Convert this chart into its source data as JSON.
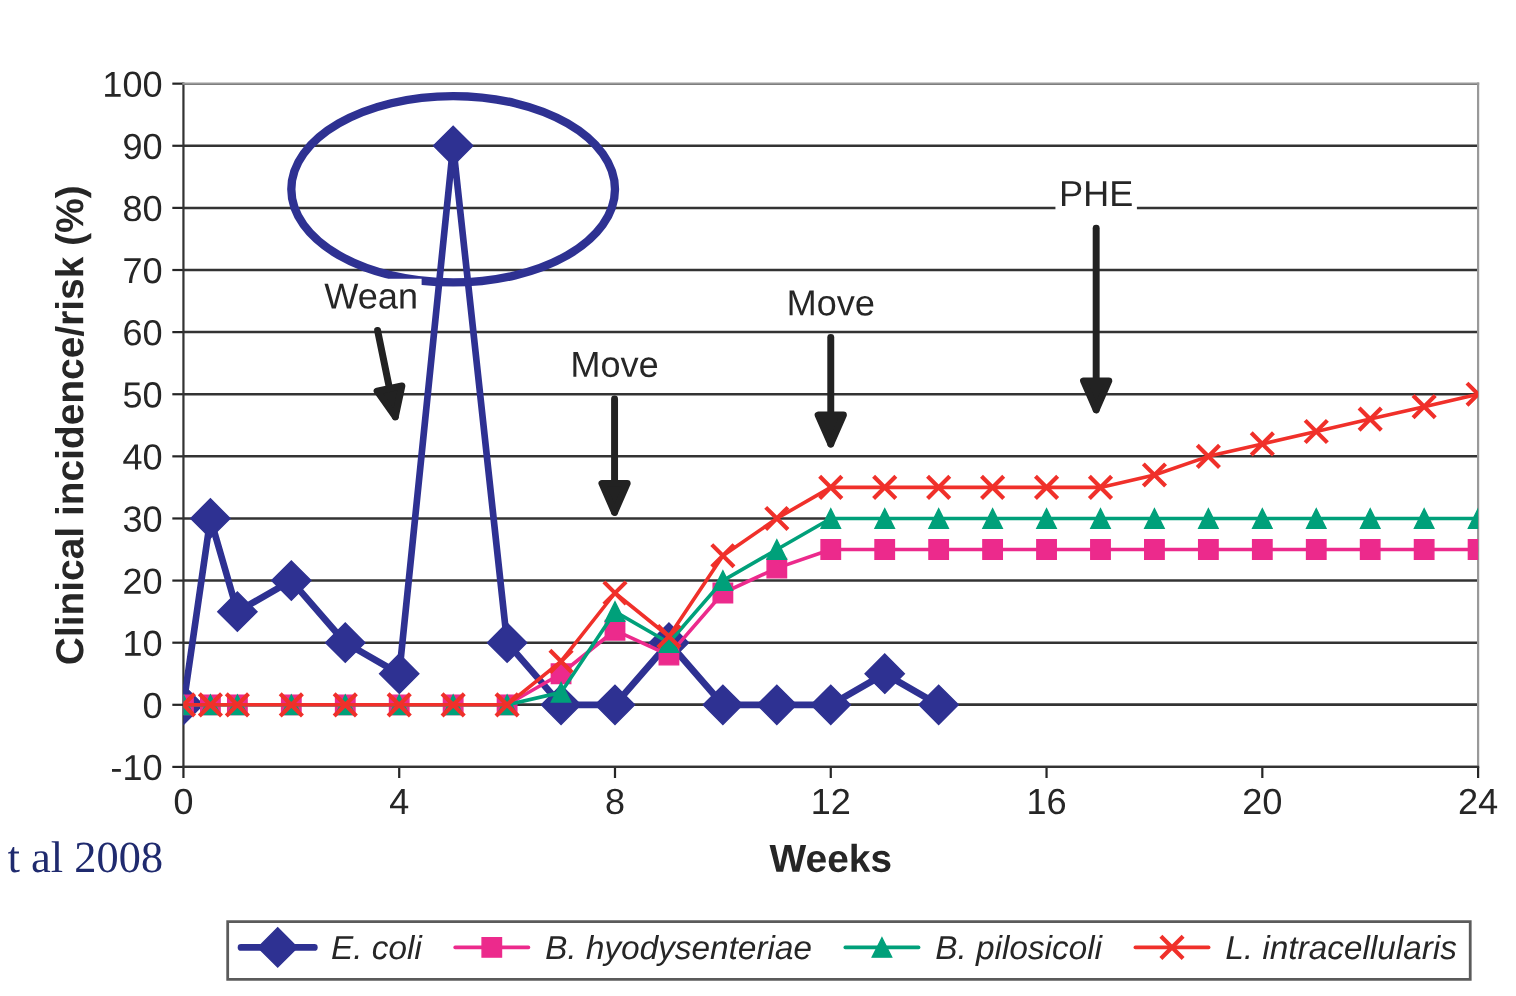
{
  "chart_data": {
    "type": "line",
    "xlabel": "Weeks",
    "ylabel": "Clinical incidence/risk (%)",
    "xlim": [
      0,
      24
    ],
    "xticks": [
      0,
      4,
      8,
      12,
      16,
      20,
      24
    ],
    "ylim": [
      -10,
      100
    ],
    "yticks": [
      -10,
      0,
      10,
      20,
      30,
      40,
      50,
      60,
      70,
      80,
      90,
      100
    ],
    "grid": "y",
    "legend": "bottom",
    "series": [
      {
        "name": "E. coli",
        "color": "#2e3192",
        "marker": "diamond",
        "x": [
          0,
          0.5,
          1,
          2,
          3,
          4,
          5,
          6,
          7,
          8,
          9,
          10,
          11,
          12,
          13,
          14
        ],
        "values": [
          0,
          30,
          15,
          20,
          10,
          5,
          90,
          10,
          0,
          0,
          10,
          0,
          0,
          0,
          5,
          0
        ]
      },
      {
        "name": "B. hyodysenteriae",
        "color": "#ec2a8c",
        "marker": "square",
        "x": [
          0,
          0.5,
          1,
          2,
          3,
          4,
          5,
          6,
          7,
          8,
          9,
          10,
          11,
          12,
          13,
          14,
          15,
          16,
          17,
          18,
          19,
          20,
          21,
          22,
          23,
          24
        ],
        "values": [
          0,
          0,
          0,
          0,
          0,
          0,
          0,
          0,
          5,
          12,
          8,
          18,
          22,
          25,
          25,
          25,
          25,
          25,
          25,
          25,
          25,
          25,
          25,
          25,
          25,
          25
        ]
      },
      {
        "name": "B. pilosicoli",
        "color": "#00a07a",
        "marker": "triangle",
        "x": [
          0,
          0.5,
          1,
          2,
          3,
          4,
          5,
          6,
          7,
          8,
          9,
          10,
          11,
          12,
          13,
          14,
          15,
          16,
          17,
          18,
          19,
          20,
          21,
          22,
          23,
          24
        ],
        "values": [
          0,
          0,
          0,
          0,
          0,
          0,
          0,
          0,
          2,
          15,
          10,
          20,
          25,
          30,
          30,
          30,
          30,
          30,
          30,
          30,
          30,
          30,
          30,
          30,
          30,
          30
        ]
      },
      {
        "name": "L. intracellularis",
        "color": "#f0302a",
        "marker": "cross",
        "x": [
          0,
          0.5,
          1,
          2,
          3,
          4,
          5,
          6,
          7,
          8,
          9,
          10,
          11,
          12,
          13,
          14,
          15,
          16,
          17,
          18,
          19,
          20,
          21,
          22,
          23,
          24
        ],
        "values": [
          0,
          0,
          0,
          0,
          0,
          0,
          0,
          0,
          7,
          18,
          11,
          24,
          30,
          35,
          35,
          35,
          35,
          35,
          35,
          37,
          40,
          42,
          44,
          46,
          48,
          50
        ]
      }
    ],
    "annotations": [
      "Wean",
      "Move",
      "Move",
      "PHE",
      "t al 2008"
    ]
  }
}
